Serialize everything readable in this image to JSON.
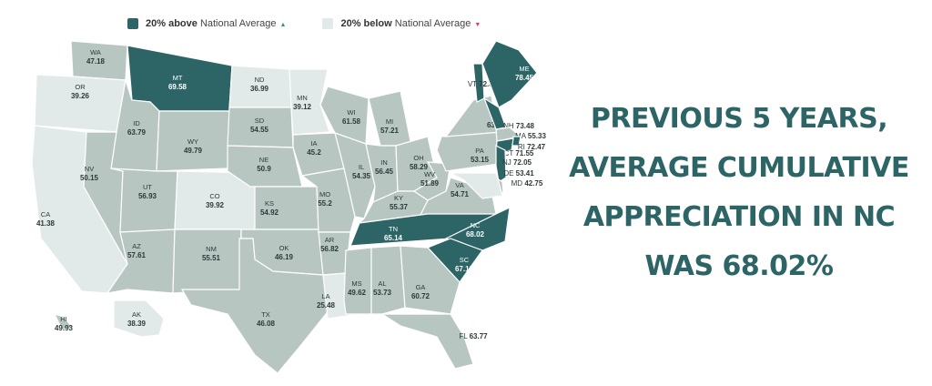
{
  "legend": {
    "above": {
      "bold": "20% above",
      "rest": "National Average",
      "marker": "▲"
    },
    "below": {
      "bold": "20% below",
      "rest": "National Average",
      "marker": "▼"
    }
  },
  "colors": {
    "above": "#2d6567",
    "normal": "#b8c6c2",
    "below": "#e1eae8",
    "up_marker": "#2f9e5a",
    "down_marker": "#e0404a",
    "headline": "#2d6567"
  },
  "headline": [
    "PREVIOUS 5 YEARS,",
    "AVERAGE CUMULATIVE",
    "APPRECIATION IN NC",
    "WAS 68.02%"
  ],
  "states": [
    {
      "abbr": "WA",
      "value": "47.18",
      "category": "normal"
    },
    {
      "abbr": "OR",
      "value": "39.26",
      "category": "below"
    },
    {
      "abbr": "CA",
      "value": "41.38",
      "category": "below"
    },
    {
      "abbr": "MT",
      "value": "69.58",
      "category": "above"
    },
    {
      "abbr": "ID",
      "value": "63.79",
      "category": "normal"
    },
    {
      "abbr": "WY",
      "value": "49.79",
      "category": "normal"
    },
    {
      "abbr": "NV",
      "value": "50.15",
      "category": "normal"
    },
    {
      "abbr": "UT",
      "value": "56.93",
      "category": "normal"
    },
    {
      "abbr": "CO",
      "value": "39.92",
      "category": "below"
    },
    {
      "abbr": "AZ",
      "value": "57.61",
      "category": "normal"
    },
    {
      "abbr": "NM",
      "value": "55.51",
      "category": "normal"
    },
    {
      "abbr": "ND",
      "value": "36.99",
      "category": "below"
    },
    {
      "abbr": "SD",
      "value": "54.55",
      "category": "normal"
    },
    {
      "abbr": "NE",
      "value": "50.9",
      "category": "normal"
    },
    {
      "abbr": "KS",
      "value": "54.92",
      "category": "normal"
    },
    {
      "abbr": "OK",
      "value": "46.19",
      "category": "normal"
    },
    {
      "abbr": "TX",
      "value": "46.08",
      "category": "normal"
    },
    {
      "abbr": "MN",
      "value": "39.12",
      "category": "below"
    },
    {
      "abbr": "IA",
      "value": "45.2",
      "category": "normal"
    },
    {
      "abbr": "MO",
      "value": "55.2",
      "category": "normal"
    },
    {
      "abbr": "AR",
      "value": "56.82",
      "category": "normal"
    },
    {
      "abbr": "LA",
      "value": "25.48",
      "category": "below"
    },
    {
      "abbr": "WI",
      "value": "61.58",
      "category": "normal"
    },
    {
      "abbr": "IL",
      "value": "54.35",
      "category": "normal"
    },
    {
      "abbr": "MI",
      "value": "57.21",
      "category": "normal"
    },
    {
      "abbr": "IN",
      "value": "56.45",
      "category": "normal"
    },
    {
      "abbr": "OH",
      "value": "58.29",
      "category": "normal"
    },
    {
      "abbr": "KY",
      "value": "55.37",
      "category": "normal"
    },
    {
      "abbr": "WV",
      "value": "51.89",
      "category": "normal"
    },
    {
      "abbr": "VA",
      "value": "54.71",
      "category": "normal"
    },
    {
      "abbr": "TN",
      "value": "65.14",
      "category": "above"
    },
    {
      "abbr": "NC",
      "value": "68.02",
      "category": "above"
    },
    {
      "abbr": "SC",
      "value": "67.12",
      "category": "above"
    },
    {
      "abbr": "MS",
      "value": "49.62",
      "category": "normal"
    },
    {
      "abbr": "AL",
      "value": "53.73",
      "category": "normal"
    },
    {
      "abbr": "GA",
      "value": "60.72",
      "category": "normal"
    },
    {
      "abbr": "FL",
      "value": "63.77",
      "category": "normal"
    },
    {
      "abbr": "PA",
      "value": "53.15",
      "category": "normal"
    },
    {
      "abbr": "NY",
      "value": "63.19",
      "category": "normal"
    },
    {
      "abbr": "VT",
      "value": "72.82",
      "category": "above"
    },
    {
      "abbr": "ME",
      "value": "78.45",
      "category": "above"
    },
    {
      "abbr": "NH",
      "value": "73.48",
      "category": "above"
    },
    {
      "abbr": "MA",
      "value": "55.33",
      "category": "normal"
    },
    {
      "abbr": "RI",
      "value": "72.47",
      "category": "above"
    },
    {
      "abbr": "CT",
      "value": "71.55",
      "category": "above"
    },
    {
      "abbr": "NJ",
      "value": "72.05",
      "category": "above"
    },
    {
      "abbr": "DE",
      "value": "53.41",
      "category": "normal"
    },
    {
      "abbr": "MD",
      "value": "42.75",
      "category": "below"
    },
    {
      "abbr": "AK",
      "value": "38.39",
      "category": "below"
    },
    {
      "abbr": "HI",
      "value": "49.93",
      "category": "normal"
    }
  ]
}
